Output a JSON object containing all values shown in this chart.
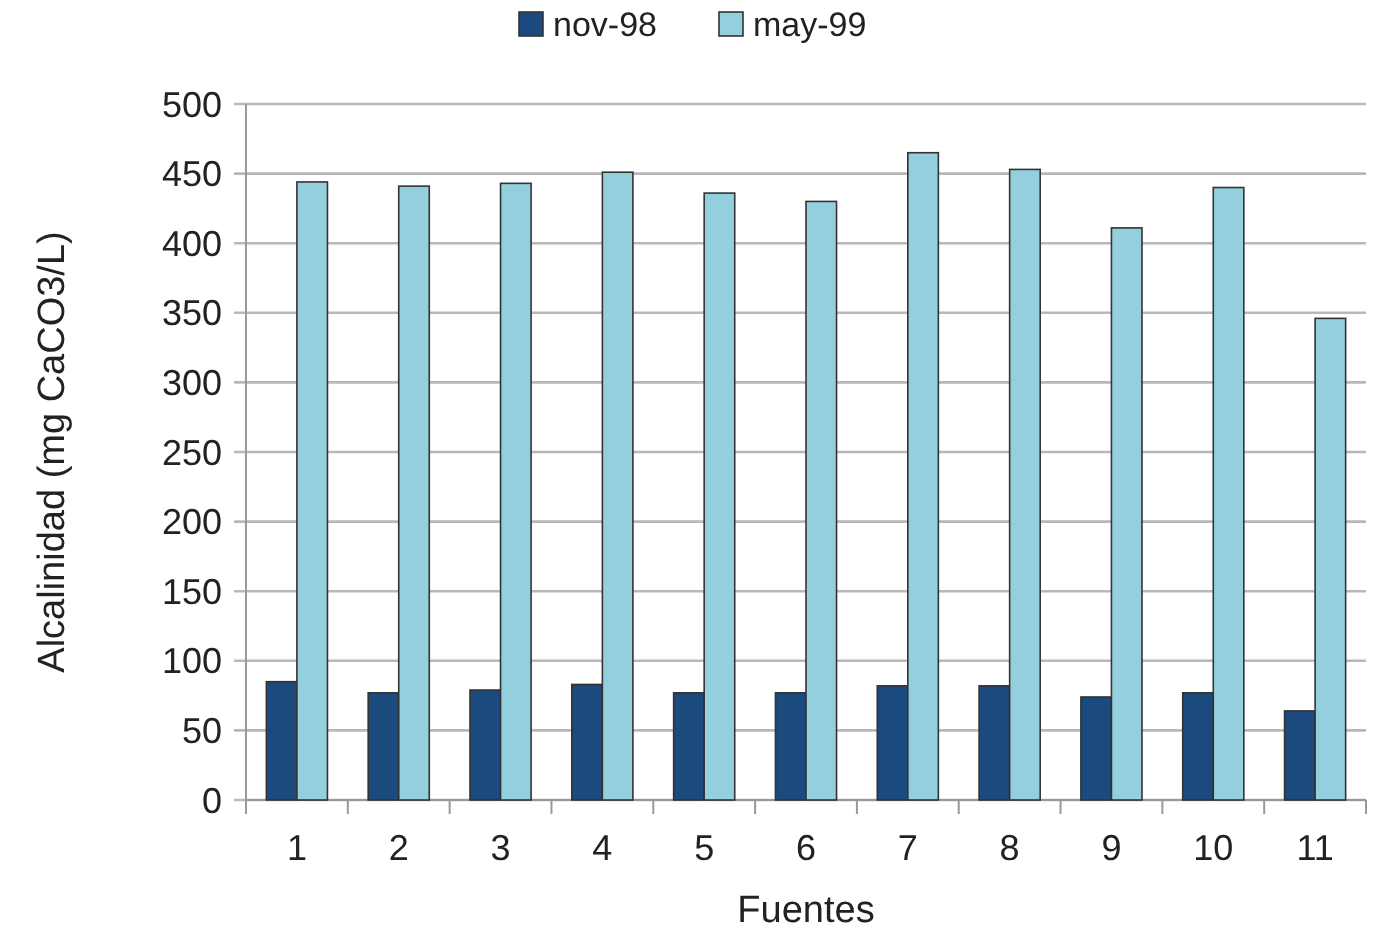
{
  "chart_data": {
    "type": "bar",
    "xlabel": "Fuentes",
    "ylabel": "Alcalinidad (mg CaCO3/L)",
    "categories": [
      "1",
      "2",
      "3",
      "4",
      "5",
      "6",
      "7",
      "8",
      "9",
      "10",
      "11"
    ],
    "series": [
      {
        "name": "nov-98",
        "color": "#1a4a7e",
        "values": [
          85,
          77,
          79,
          83,
          77,
          77,
          82,
          82,
          74,
          77,
          64
        ]
      },
      {
        "name": "may-99",
        "color": "#94cfde",
        "values": [
          444,
          441,
          443,
          451,
          436,
          430,
          465,
          453,
          411,
          440,
          346
        ]
      }
    ],
    "ylim": [
      0,
      500
    ],
    "yticks": [
      0,
      50,
      100,
      150,
      200,
      250,
      300,
      350,
      400,
      450,
      500
    ],
    "grid": "y",
    "legend": "top"
  }
}
